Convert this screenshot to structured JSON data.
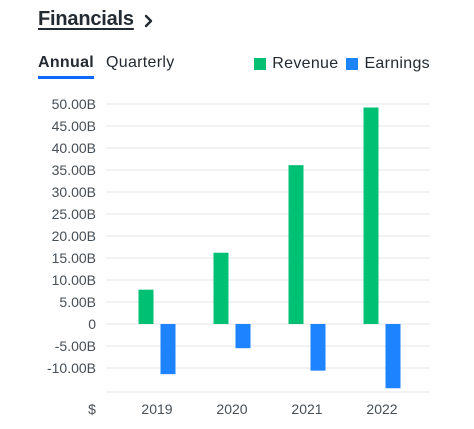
{
  "header": {
    "title": "Financials"
  },
  "tabs": [
    {
      "label": "Annual",
      "active": true
    },
    {
      "label": "Quarterly",
      "active": false
    }
  ],
  "legend": [
    {
      "label": "Revenue",
      "color": "#00c073"
    },
    {
      "label": "Earnings",
      "color": "#1e83ff"
    }
  ],
  "chart_data": {
    "type": "bar",
    "categories": [
      "2019",
      "2020",
      "2021",
      "2022"
    ],
    "series": [
      {
        "name": "Revenue",
        "values": [
          7.8,
          16.2,
          36.1,
          49.2
        ],
        "color": "#00c073"
      },
      {
        "name": "Earnings",
        "values": [
          -11.4,
          -5.5,
          -10.6,
          -14.6
        ],
        "color": "#1e83ff"
      }
    ],
    "y_ticks": [
      "50.00B",
      "45.00B",
      "40.00B",
      "35.00B",
      "30.00B",
      "25.00B",
      "20.00B",
      "15.00B",
      "10.00B",
      "5.00B",
      "0",
      "-5.00B",
      "-10.00B"
    ],
    "y_tick_values": [
      50,
      45,
      40,
      35,
      30,
      25,
      20,
      15,
      10,
      5,
      0,
      -5,
      -10
    ],
    "ylim": [
      -15,
      50
    ],
    "unit_label": "$",
    "grid": true,
    "legend_position": "top-right"
  }
}
